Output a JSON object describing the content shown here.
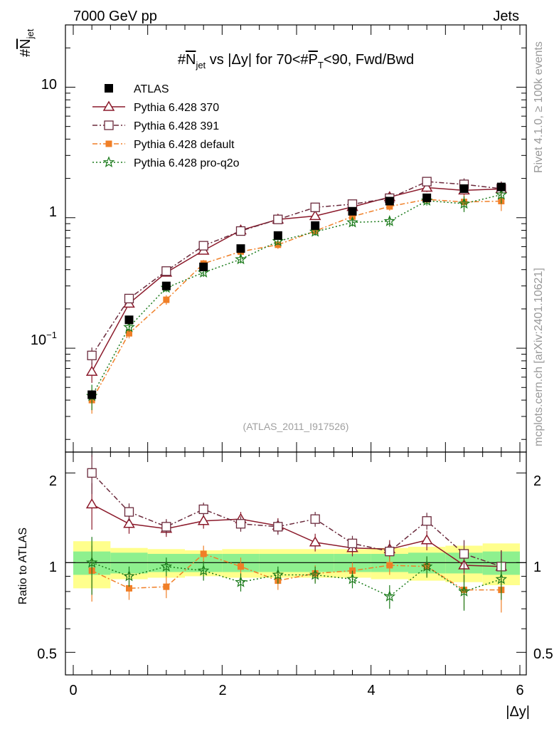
{
  "header": {
    "left": "7000 GeV pp",
    "right": "Jets"
  },
  "side_labels": {
    "rivet": "Rivet 4.1.0, ≥ 100k events",
    "mcplots": "mcplots.cern.ch [arXiv:2401.10621]"
  },
  "chart_data": {
    "type": "scatter",
    "title": "#N_jet vs |Δy| for 70<#P_T<90, Fwd/Bwd",
    "title_parts": {
      "p1": "#",
      "p2": "N",
      "p3": "jet",
      "p4": " vs |Δy| for 70<#",
      "p5": "P",
      "p6": "T",
      "p7": "<90, Fwd/Bwd"
    },
    "ylabel_parts": {
      "p1": "#",
      "p2": "N",
      "p3": "jet"
    },
    "xlabel": "|Δy|",
    "ratio_ylabel": "Ratio to ATLAS",
    "watermark": "(ATLAS_2011_I917526)",
    "xlim": [
      -0.15,
      6.15
    ],
    "ylim_main": [
      0.016,
      30
    ],
    "ylim_ratio": [
      0.42,
      2.35
    ],
    "x_ticks": [
      "0",
      "2",
      "4",
      "6"
    ],
    "main_y_ticks": {
      "ten": "10",
      "one": "1",
      "tenth_base": "10",
      "tenth_exp": "−1"
    },
    "ratio_y_ticks": [
      "0.5",
      "1",
      "2"
    ],
    "x": [
      0.25,
      0.75,
      1.25,
      1.75,
      2.25,
      2.75,
      3.25,
      3.75,
      4.25,
      4.75,
      5.25,
      5.75
    ],
    "atlas": {
      "name": "ATLAS",
      "values": [
        0.044,
        0.165,
        0.3,
        0.42,
        0.58,
        0.73,
        0.87,
        1.12,
        1.34,
        1.42,
        1.67,
        1.72
      ],
      "band_inner": [
        0.09,
        0.08,
        0.07,
        0.07,
        0.07,
        0.07,
        0.07,
        0.07,
        0.07,
        0.08,
        0.08,
        0.09
      ],
      "band_outer": [
        0.18,
        0.12,
        0.11,
        0.1,
        0.11,
        0.11,
        0.11,
        0.11,
        0.12,
        0.13,
        0.14,
        0.16
      ]
    },
    "series": [
      {
        "name": "Pythia 6.428 370",
        "color": "#8b1a2b",
        "marker": "triangle-open",
        "dash": "",
        "values": [
          0.066,
          0.22,
          0.38,
          0.56,
          0.8,
          0.97,
          1.03,
          1.21,
          1.44,
          1.7,
          1.62,
          1.66
        ],
        "ratio": [
          1.57,
          1.35,
          1.3,
          1.38,
          1.4,
          1.33,
          1.17,
          1.12,
          1.11,
          1.19,
          0.98,
          0.97
        ],
        "ratio_err": [
          0.28,
          0.1,
          0.08,
          0.08,
          0.08,
          0.08,
          0.08,
          0.07,
          0.08,
          0.09,
          0.12,
          0.13
        ]
      },
      {
        "name": "Pythia 6.428 391",
        "color": "#6b2a3c",
        "marker": "square-open",
        "dash": "7,3,2,3",
        "values": [
          0.088,
          0.24,
          0.39,
          0.61,
          0.79,
          0.97,
          1.2,
          1.27,
          1.41,
          1.89,
          1.8,
          1.67
        ],
        "ratio": [
          2.0,
          1.48,
          1.32,
          1.51,
          1.35,
          1.32,
          1.4,
          1.16,
          1.09,
          1.38,
          1.07,
          0.97
        ],
        "ratio_err": [
          0.3,
          0.1,
          0.08,
          0.08,
          0.08,
          0.08,
          0.08,
          0.07,
          0.08,
          0.09,
          0.12,
          0.13
        ]
      },
      {
        "name": "Pythia 6.428 default",
        "color": "#f07f27",
        "marker": "square-filled",
        "dash": "7,3,2,3",
        "values": [
          0.04,
          0.13,
          0.235,
          0.445,
          0.55,
          0.62,
          0.79,
          1.02,
          1.22,
          1.38,
          1.32,
          1.34
        ],
        "ratio": [
          0.94,
          0.82,
          0.83,
          1.07,
          0.97,
          0.87,
          0.92,
          0.94,
          0.98,
          0.97,
          0.81,
          0.81
        ],
        "ratio_err": [
          0.2,
          0.07,
          0.07,
          0.07,
          0.07,
          0.06,
          0.06,
          0.06,
          0.07,
          0.07,
          0.11,
          0.13
        ]
      },
      {
        "name": "Pythia 6.428 pro-q2o",
        "color": "#1a7a1a",
        "marker": "star-open",
        "dash": "2,3",
        "values": [
          0.043,
          0.145,
          0.29,
          0.38,
          0.48,
          0.66,
          0.78,
          0.92,
          0.94,
          1.35,
          1.28,
          1.5
        ],
        "ratio": [
          1.0,
          0.9,
          0.97,
          0.94,
          0.86,
          0.91,
          0.91,
          0.88,
          0.77,
          0.97,
          0.8,
          0.88
        ],
        "ratio_err": [
          0.22,
          0.07,
          0.07,
          0.07,
          0.06,
          0.06,
          0.06,
          0.06,
          0.07,
          0.08,
          0.11,
          0.13
        ]
      }
    ]
  }
}
